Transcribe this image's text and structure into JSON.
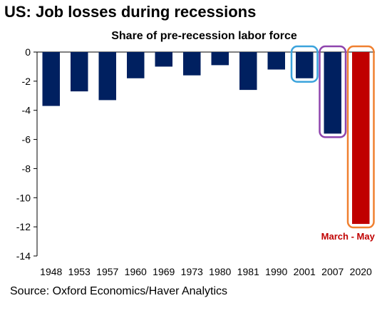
{
  "chart_data": {
    "type": "bar",
    "title": "US: Job losses during recessions",
    "subtitle": "Share of pre-recession labor force",
    "source": "Source: Oxford Economics/Haver Analytics",
    "categories": [
      "1948",
      "1953",
      "1957",
      "1960",
      "1969",
      "1973",
      "1980",
      "1981",
      "1990",
      "2001",
      "2007",
      "2020"
    ],
    "values": [
      -3.7,
      -2.7,
      -3.3,
      -1.8,
      -1.0,
      -1.6,
      -0.9,
      -2.6,
      -1.2,
      -1.8,
      -5.6,
      -11.8
    ],
    "ylim": [
      -14,
      0
    ],
    "yticks": [
      0,
      -2,
      -4,
      -6,
      -8,
      -10,
      -12,
      -14
    ],
    "bar_color": "#002060",
    "highlight_color": "#C00000",
    "highlight_index": 11,
    "annotation": {
      "text": "March - May",
      "color": "#C00000",
      "index": 11
    },
    "callouts": [
      {
        "index": 9,
        "color": "#3BA3DC"
      },
      {
        "index": 10,
        "color": "#8E44AD"
      },
      {
        "index": 11,
        "color": "#F08030"
      }
    ]
  }
}
